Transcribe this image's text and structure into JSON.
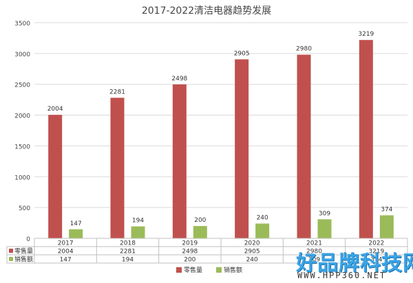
{
  "chart_data": {
    "type": "bar",
    "title": "2017-2022清洁电器趋势发展",
    "categories": [
      "2017",
      "2018",
      "2019",
      "2020",
      "2021",
      "2022"
    ],
    "series": [
      {
        "name": "零售量",
        "color": "#c0504d",
        "values": [
          2004,
          2281,
          2498,
          2905,
          2980,
          3219
        ]
      },
      {
        "name": "销售额",
        "color": "#9bbb59",
        "values": [
          147,
          194,
          200,
          240,
          309,
          374
        ]
      }
    ],
    "yticks": [
      0,
      500,
      1000,
      1500,
      2000,
      2500,
      3000,
      3500
    ],
    "ylim": [
      0,
      3500
    ],
    "grid": true,
    "legend": "bottom-center",
    "data_table": true
  },
  "watermark": {
    "main": "好品牌科技网",
    "url": "WWW.HPP360.NET"
  }
}
